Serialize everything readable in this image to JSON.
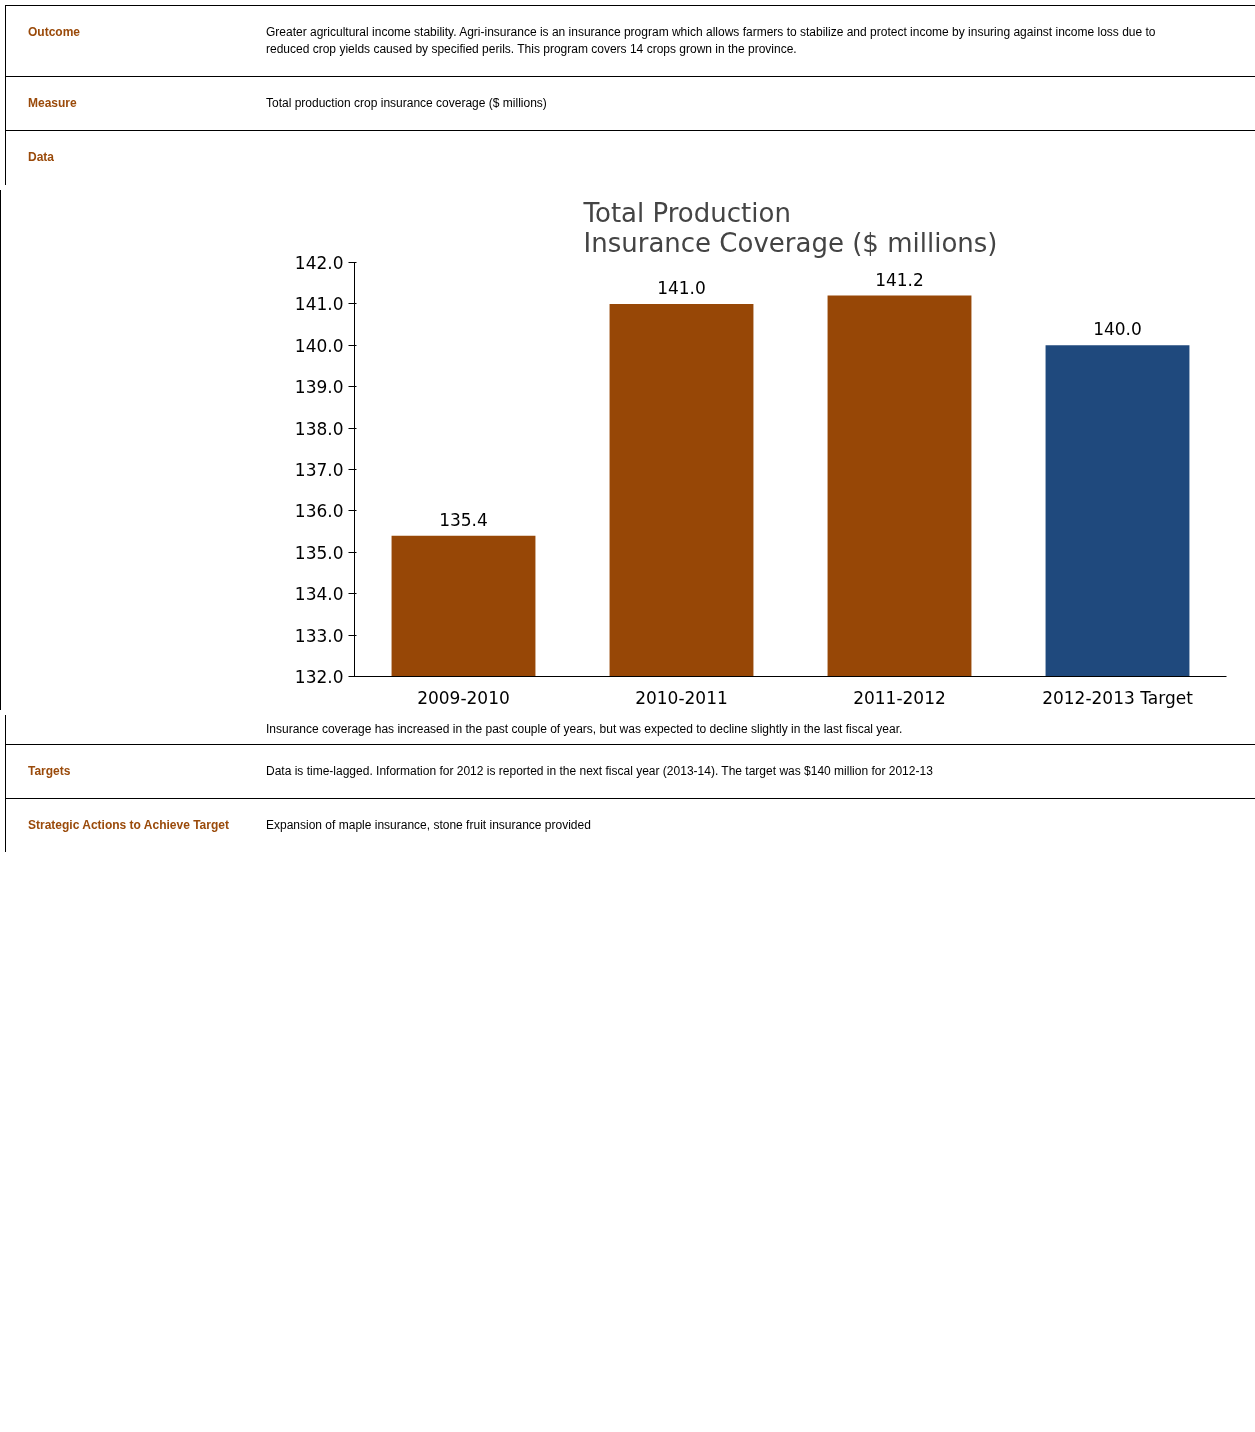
{
  "chart_data": {
    "type": "bar",
    "title": "Total Production\nInsurance Coverage ($ millions)",
    "categories": [
      "2009-2010",
      "2010-2011",
      "2011-2012",
      "2012-2013 Target"
    ],
    "values": [
      135.4,
      141.0,
      141.2,
      140.0
    ],
    "colors": [
      "#974706",
      "#974706",
      "#974706",
      "#1f497d"
    ],
    "value_labels": [
      "135.4",
      "141.0",
      "141.2",
      "140.0"
    ],
    "ylim": [
      132,
      142
    ],
    "yticks": [
      {
        "value": 132,
        "label": "132.0"
      },
      {
        "value": 133,
        "label": "133.0"
      },
      {
        "value": 134,
        "label": "134.0"
      },
      {
        "value": 135,
        "label": "135.0"
      },
      {
        "value": 136,
        "label": "136.0"
      },
      {
        "value": 137,
        "label": "137.0"
      },
      {
        "value": 138,
        "label": "138.0"
      },
      {
        "value": 139,
        "label": "139.0"
      },
      {
        "value": 140,
        "label": "140.0"
      },
      {
        "value": 141,
        "label": "141.0"
      },
      {
        "value": 142,
        "label": "142.0"
      }
    ],
    "grid": false,
    "annotations": [
      "Outcome",
      "Greater agricultural income stability.  Agri-insurance is an insurance program which allows farmers to stabilize and protect income by insuring against income loss due to reduced crop yields caused by specified perils. This program covers 14 crops grown in the province.",
      "Measure",
      "Total production crop insurance coverage ($ millions)",
      "Data",
      "Insurance coverage has increased in the past couple of years, but was expected to decline slightly in the last fiscal year.",
      "Targets",
      "Data is time-lagged.  Information for 2012 is reported in the next fiscal year (2013-14).  The target was $140 million for 2012-13",
      "Strategic Actions to Achieve Target",
      "Expansion of maple insurance, stone fruit insurance provided"
    ]
  }
}
